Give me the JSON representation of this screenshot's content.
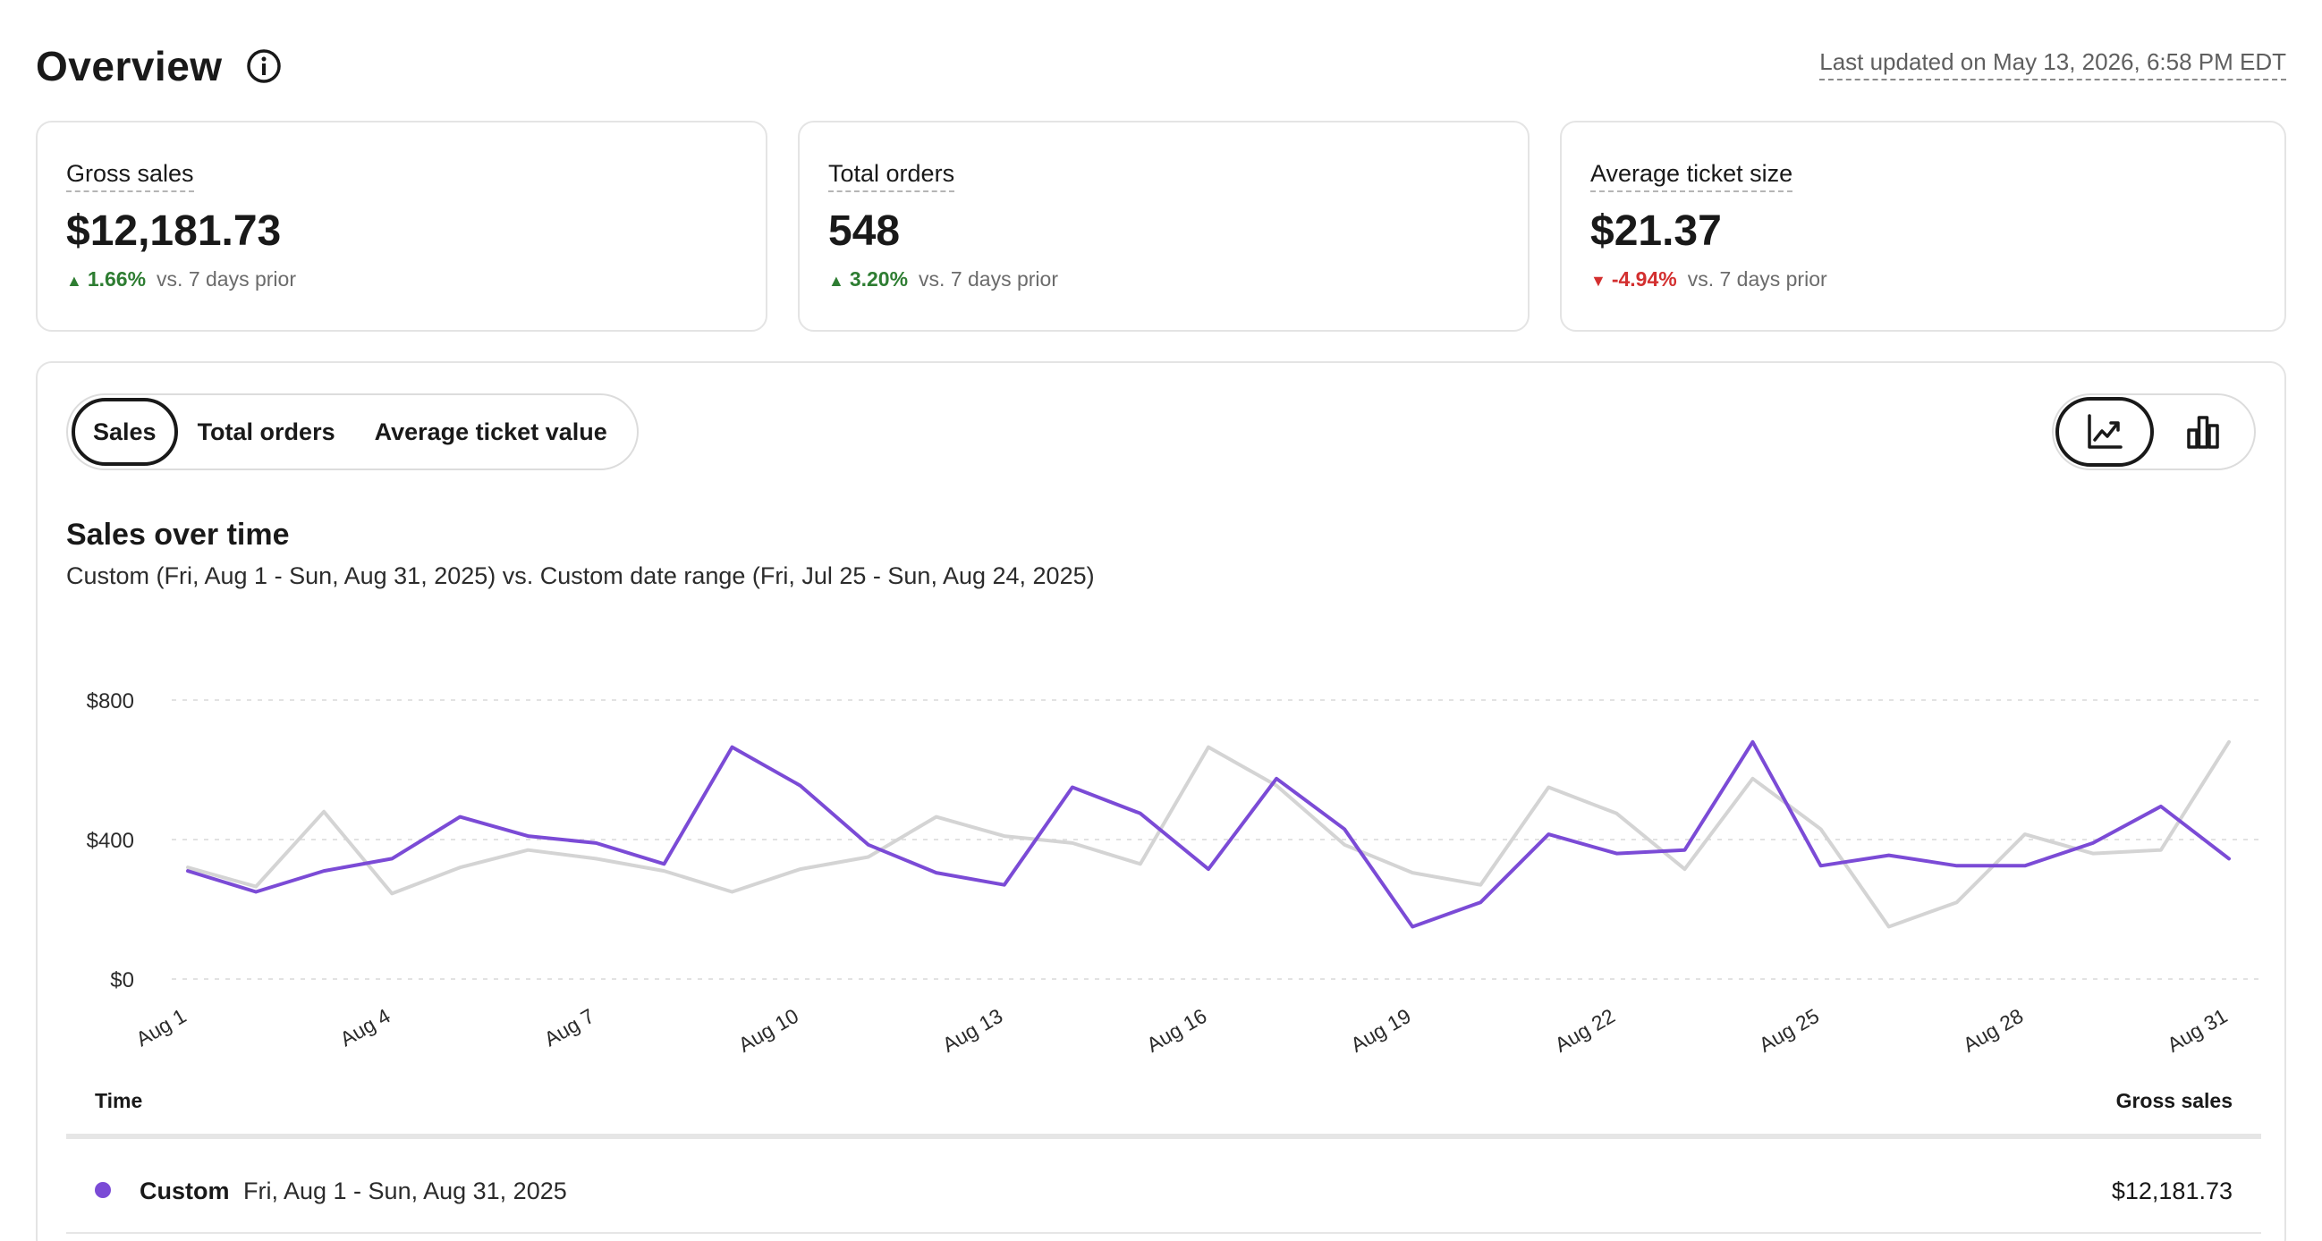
{
  "header": {
    "title": "Overview",
    "info_icon": "info-circle-icon",
    "last_updated": "Last updated on May 13, 2026, 6:58 PM EDT"
  },
  "kpis": [
    {
      "label": "Gross sales",
      "value": "$12,181.73",
      "direction": "up",
      "change": "1.66%",
      "comparison": "vs. 7 days prior"
    },
    {
      "label": "Total orders",
      "value": "548",
      "direction": "up",
      "change": "3.20%",
      "comparison": "vs. 7 days prior"
    },
    {
      "label": "Average ticket size",
      "value": "$21.37",
      "direction": "down",
      "change": "-4.94%",
      "comparison": "vs. 7 days prior"
    }
  ],
  "metric_tabs": [
    {
      "label": "Sales",
      "active": true
    },
    {
      "label": "Total orders",
      "active": false
    },
    {
      "label": "Average ticket value",
      "active": false
    }
  ],
  "chart_toggle": [
    {
      "icon": "line-chart-icon",
      "active": true
    },
    {
      "icon": "bar-chart-icon",
      "active": false
    }
  ],
  "chart_header": {
    "title": "Sales over time",
    "subtitle": "Custom (Fri, Aug 1 - Sun, Aug 31, 2025) vs. Custom date range (Fri, Jul 25 - Sun, Aug 24, 2025)"
  },
  "colors": {
    "current_series": "#7b4bd6",
    "previous_series": "#d4d4d4",
    "positive": "#2e7d32",
    "negative": "#d32f2f"
  },
  "chart_data": {
    "type": "line",
    "x": [
      "Aug 1",
      "Aug 2",
      "Aug 3",
      "Aug 4",
      "Aug 5",
      "Aug 6",
      "Aug 7",
      "Aug 8",
      "Aug 9",
      "Aug 10",
      "Aug 11",
      "Aug 12",
      "Aug 13",
      "Aug 14",
      "Aug 15",
      "Aug 16",
      "Aug 17",
      "Aug 18",
      "Aug 19",
      "Aug 20",
      "Aug 21",
      "Aug 22",
      "Aug 23",
      "Aug 24",
      "Aug 25",
      "Aug 26",
      "Aug 27",
      "Aug 28",
      "Aug 29",
      "Aug 30",
      "Aug 31"
    ],
    "x_tick_labels": [
      "Aug 1",
      "Aug 4",
      "Aug 7",
      "Aug 10",
      "Aug 13",
      "Aug 16",
      "Aug 19",
      "Aug 22",
      "Aug 25",
      "Aug 28",
      "Aug 31"
    ],
    "y_tick_labels": [
      "$800",
      "$400",
      "$0"
    ],
    "ylim": [
      0,
      800
    ],
    "grid": true,
    "series": [
      {
        "values": [
          310,
          250,
          310,
          345,
          465,
          410,
          390,
          330,
          665,
          555,
          385,
          305,
          270,
          550,
          475,
          315,
          575,
          430,
          150,
          220,
          415,
          360,
          370,
          680,
          325,
          355,
          325,
          325,
          390,
          495,
          345
        ]
      },
      {
        "values": [
          320,
          265,
          480,
          245,
          320,
          370,
          345,
          310,
          250,
          315,
          350,
          465,
          410,
          390,
          330,
          665,
          555,
          385,
          305,
          270,
          550,
          475,
          315,
          575,
          430,
          150,
          220,
          415,
          360,
          370,
          680
        ]
      }
    ]
  },
  "table": {
    "col_time": "Time",
    "col_gross": "Gross sales",
    "rows": [
      {
        "label": "Custom",
        "range": "Fri, Aug 1 - Sun, Aug 31, 2025",
        "value": "$12,181.73"
      }
    ]
  }
}
